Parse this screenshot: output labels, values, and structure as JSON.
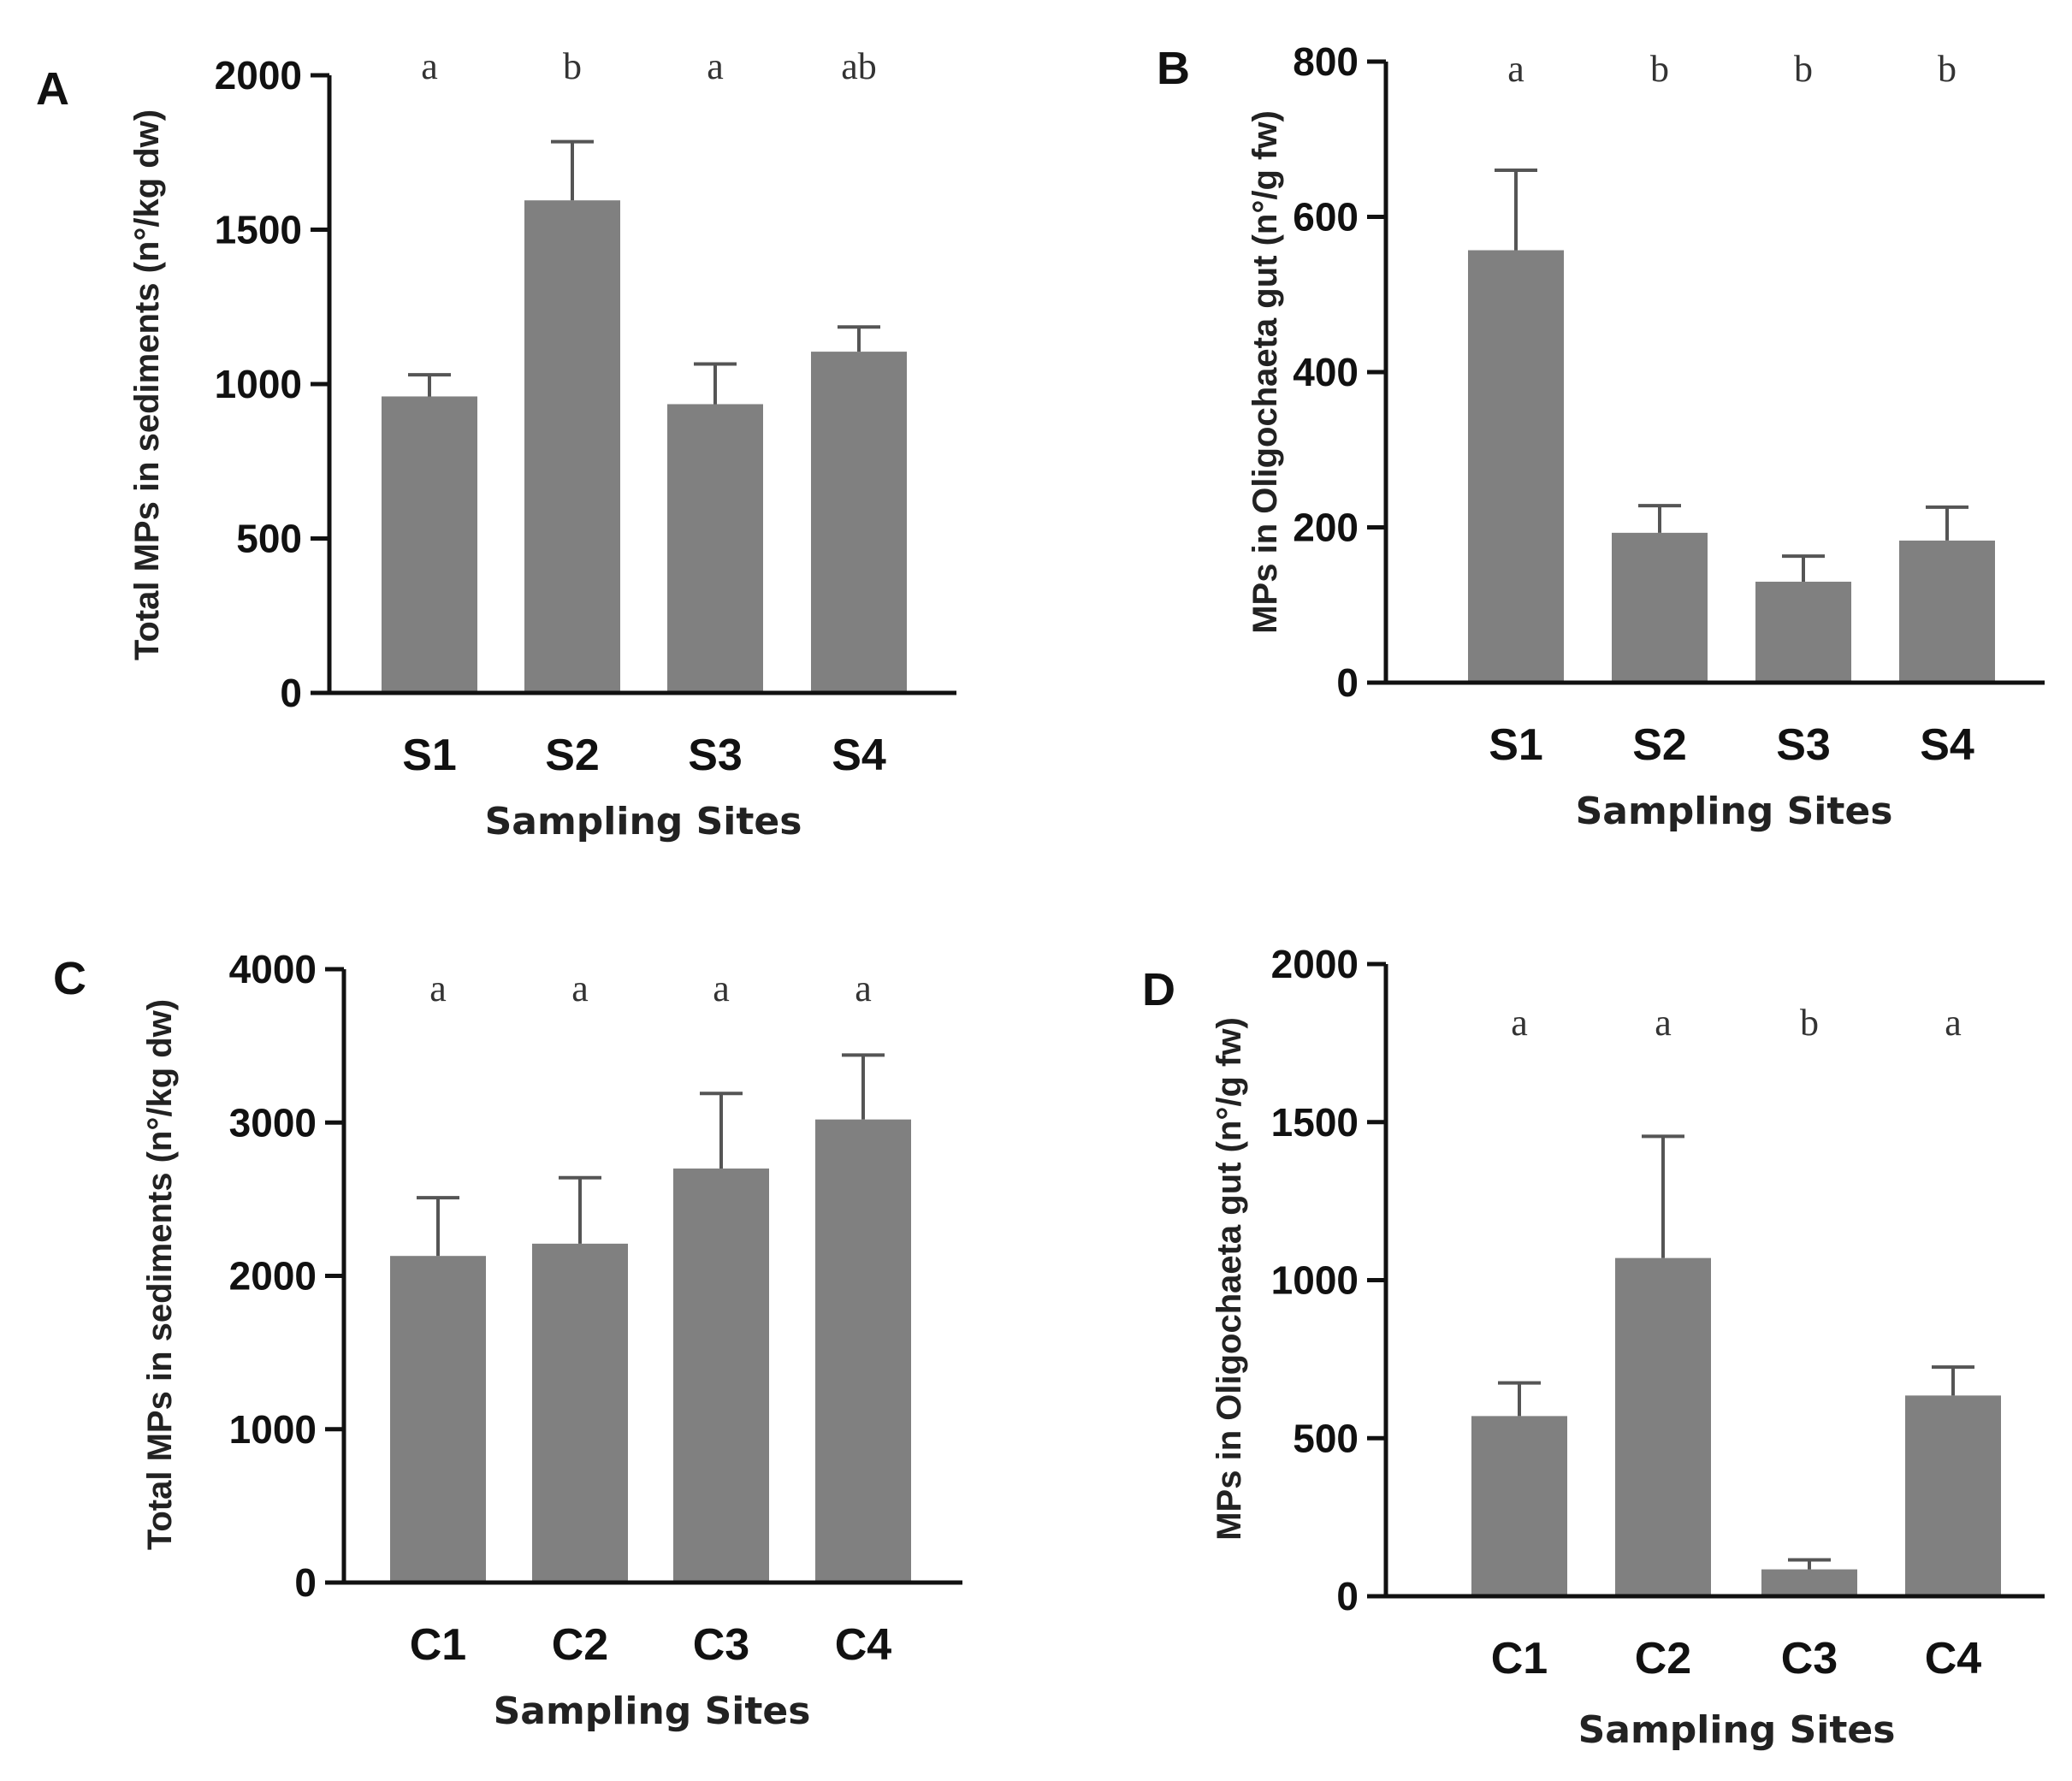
{
  "chart_data": [
    {
      "type": "bar",
      "panel": "A",
      "categories": [
        "S1",
        "S2",
        "S3",
        "S4"
      ],
      "values": [
        960,
        1595,
        935,
        1105
      ],
      "errors": [
        70,
        190,
        130,
        80
      ],
      "significance": [
        "a",
        "b",
        "a",
        "ab"
      ],
      "ticks": [
        "0",
        "500",
        "1000",
        "1500",
        "2000"
      ],
      "ylim": [
        0,
        2000
      ],
      "xlabel": "Sampling Sites",
      "ylabel": "Total MPs in sediments (n°/kg dw)"
    },
    {
      "type": "bar",
      "panel": "B",
      "categories": [
        "S1",
        "S2",
        "S3",
        "S4"
      ],
      "values": [
        557,
        193,
        130,
        183
      ],
      "errors": [
        103,
        35,
        33,
        43
      ],
      "significance": [
        "a",
        "b",
        "b",
        "b"
      ],
      "ticks": [
        "0",
        "200",
        "400",
        "600",
        "800"
      ],
      "ylim": [
        0,
        800
      ],
      "xlabel": "Sampling Sites",
      "ylabel": "MPs in Oligochaeta gut (n°/g fw)"
    },
    {
      "type": "bar",
      "panel": "C",
      "categories": [
        "C1",
        "C2",
        "C3",
        "C4"
      ],
      "values": [
        2130,
        2210,
        2700,
        3020
      ],
      "errors": [
        380,
        430,
        490,
        420
      ],
      "significance": [
        "a",
        "a",
        "a",
        "a"
      ],
      "ticks": [
        "0",
        "1000",
        "2000",
        "3000",
        "4000"
      ],
      "ylim": [
        0,
        4000
      ],
      "xlabel": "Sampling Sites",
      "ylabel": "Total MPs in sediments (n°/kg dw)"
    },
    {
      "type": "bar",
      "panel": "D",
      "categories": [
        "C1",
        "C2",
        "C3",
        "C4"
      ],
      "values": [
        570,
        1070,
        85,
        635
      ],
      "errors": [
        105,
        385,
        30,
        90
      ],
      "significance": [
        "a",
        "a",
        "b",
        "a"
      ],
      "ticks": [
        "0",
        "500",
        "1000",
        "1500",
        "2000"
      ],
      "ylim": [
        0,
        2000
      ],
      "xlabel": "Sampling Sites",
      "ylabel": "MPs in Oligochaeta gut (n°/g fw)"
    }
  ]
}
